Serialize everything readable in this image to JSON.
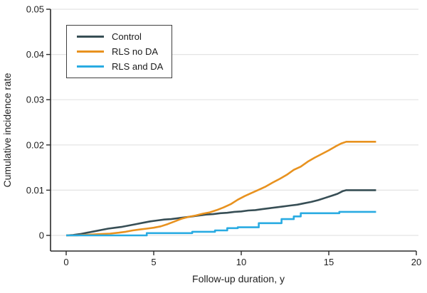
{
  "figure": {
    "background": "#ffffff",
    "axis_color": "#2a2a2a",
    "grid_color": "#e3e3e3",
    "text_color": "#1f1f1f"
  },
  "chart_data": {
    "type": "line",
    "title": "",
    "xlabel": "Follow-up duration, y",
    "ylabel": "Cumulative incidence rate",
    "xlim": [
      0,
      20
    ],
    "ylim": [
      0,
      0.05
    ],
    "xticks": [
      0,
      5,
      10,
      15,
      20
    ],
    "xtick_labels": [
      "0",
      "5",
      "10",
      "15",
      "20"
    ],
    "yticks": [
      0,
      0.01,
      0.02,
      0.03,
      0.04,
      0.05
    ],
    "ytick_labels": [
      "0",
      "0.01",
      "0.02",
      "0.03",
      "0.04",
      "0.05"
    ],
    "grid": "horizontal",
    "legend_position": "top-left-inside",
    "series": [
      {
        "name": "Control",
        "color": "#374E55",
        "interpolation": "linear",
        "points": [
          [
            0,
            0
          ],
          [
            0.4,
            0.0001
          ],
          [
            0.8,
            0.0003
          ],
          [
            1.2,
            0.0006
          ],
          [
            1.6,
            0.0009
          ],
          [
            2.0,
            0.0012
          ],
          [
            2.4,
            0.0015
          ],
          [
            2.8,
            0.0017
          ],
          [
            3.2,
            0.0019
          ],
          [
            3.6,
            0.0022
          ],
          [
            4.0,
            0.0025
          ],
          [
            4.4,
            0.0028
          ],
          [
            4.8,
            0.0031
          ],
          [
            5.2,
            0.0033
          ],
          [
            5.6,
            0.0035
          ],
          [
            6.0,
            0.0036
          ],
          [
            6.4,
            0.0038
          ],
          [
            6.8,
            0.004
          ],
          [
            7.2,
            0.0042
          ],
          [
            7.6,
            0.0044
          ],
          [
            8.0,
            0.0046
          ],
          [
            8.4,
            0.0047
          ],
          [
            8.8,
            0.0049
          ],
          [
            9.2,
            0.005
          ],
          [
            9.6,
            0.0052
          ],
          [
            10.0,
            0.0053
          ],
          [
            10.4,
            0.0055
          ],
          [
            10.8,
            0.0056
          ],
          [
            11.2,
            0.0058
          ],
          [
            11.6,
            0.006
          ],
          [
            12.0,
            0.0062
          ],
          [
            12.4,
            0.0064
          ],
          [
            12.8,
            0.0066
          ],
          [
            13.2,
            0.0068
          ],
          [
            13.6,
            0.0071
          ],
          [
            14.0,
            0.0074
          ],
          [
            14.4,
            0.0078
          ],
          [
            14.8,
            0.0083
          ],
          [
            15.2,
            0.0088
          ],
          [
            15.5,
            0.0092
          ],
          [
            15.8,
            0.0098
          ],
          [
            16.0,
            0.01
          ],
          [
            17.7,
            0.01
          ]
        ]
      },
      {
        "name": "RLS no DA",
        "color": "#E8921F",
        "interpolation": "linear",
        "points": [
          [
            0,
            0
          ],
          [
            0.6,
            0.0
          ],
          [
            1.0,
            0.0001
          ],
          [
            1.5,
            0.0002
          ],
          [
            2.0,
            0.0003
          ],
          [
            2.5,
            0.0004
          ],
          [
            3.0,
            0.0006
          ],
          [
            3.4,
            0.0008
          ],
          [
            3.8,
            0.0011
          ],
          [
            4.2,
            0.0013
          ],
          [
            4.6,
            0.0015
          ],
          [
            5.0,
            0.0017
          ],
          [
            5.4,
            0.002
          ],
          [
            5.8,
            0.0025
          ],
          [
            6.2,
            0.0031
          ],
          [
            6.6,
            0.0037
          ],
          [
            7.0,
            0.0041
          ],
          [
            7.4,
            0.0044
          ],
          [
            7.8,
            0.0048
          ],
          [
            8.2,
            0.0051
          ],
          [
            8.6,
            0.0056
          ],
          [
            9.0,
            0.0062
          ],
          [
            9.4,
            0.0069
          ],
          [
            9.8,
            0.0079
          ],
          [
            10.2,
            0.0087
          ],
          [
            10.6,
            0.0094
          ],
          [
            11.0,
            0.0101
          ],
          [
            11.4,
            0.0108
          ],
          [
            11.8,
            0.0117
          ],
          [
            12.2,
            0.0125
          ],
          [
            12.6,
            0.0134
          ],
          [
            13.0,
            0.0145
          ],
          [
            13.4,
            0.0152
          ],
          [
            13.8,
            0.0163
          ],
          [
            14.2,
            0.0172
          ],
          [
            14.6,
            0.018
          ],
          [
            15.0,
            0.0188
          ],
          [
            15.4,
            0.0197
          ],
          [
            15.7,
            0.0203
          ],
          [
            16.0,
            0.0207
          ],
          [
            17.7,
            0.0207
          ]
        ]
      },
      {
        "name": "RLS and DA",
        "color": "#29ABE2",
        "interpolation": "step-after",
        "points": [
          [
            0,
            0
          ],
          [
            4.6,
            0.0005
          ],
          [
            7.2,
            0.0008
          ],
          [
            8.5,
            0.0011
          ],
          [
            9.2,
            0.0016
          ],
          [
            9.8,
            0.0018
          ],
          [
            11.0,
            0.0027
          ],
          [
            12.3,
            0.0036
          ],
          [
            13.0,
            0.0042
          ],
          [
            13.4,
            0.0049
          ],
          [
            15.6,
            0.0052
          ],
          [
            17.7,
            0.0052
          ]
        ]
      }
    ]
  }
}
